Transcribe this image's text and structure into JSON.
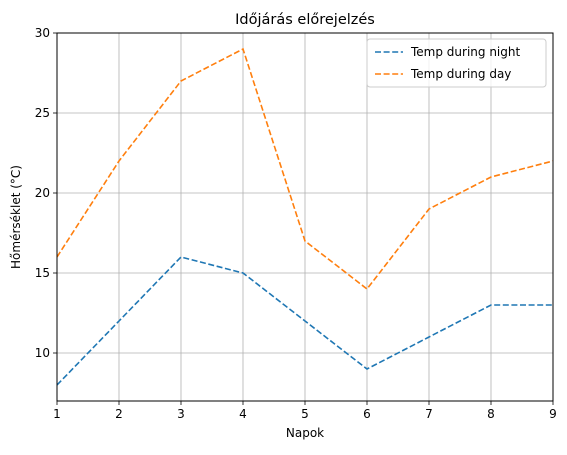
{
  "chart_data": {
    "type": "line",
    "title": "Időjárás előrejelzés",
    "xlabel": "Napok",
    "ylabel": "Hőmérséklet (°C)",
    "x": [
      1,
      2,
      3,
      4,
      5,
      6,
      7,
      8,
      9
    ],
    "xlim": [
      1,
      9
    ],
    "ylim": [
      7,
      30
    ],
    "xticks": [
      1,
      2,
      3,
      4,
      5,
      6,
      7,
      8,
      9
    ],
    "yticks": [
      10,
      15,
      20,
      25,
      30
    ],
    "grid": true,
    "legend_position": "top-right",
    "series": [
      {
        "name": "Temp during night",
        "values": [
          8,
          12,
          16,
          15,
          12,
          9,
          11,
          13,
          13
        ],
        "color": "#1f77b4",
        "style": "dashed"
      },
      {
        "name": "Temp during day",
        "values": [
          16,
          22,
          27,
          29,
          17,
          14,
          19,
          21,
          22
        ],
        "color": "#ff7f0e",
        "style": "dashed"
      }
    ]
  }
}
